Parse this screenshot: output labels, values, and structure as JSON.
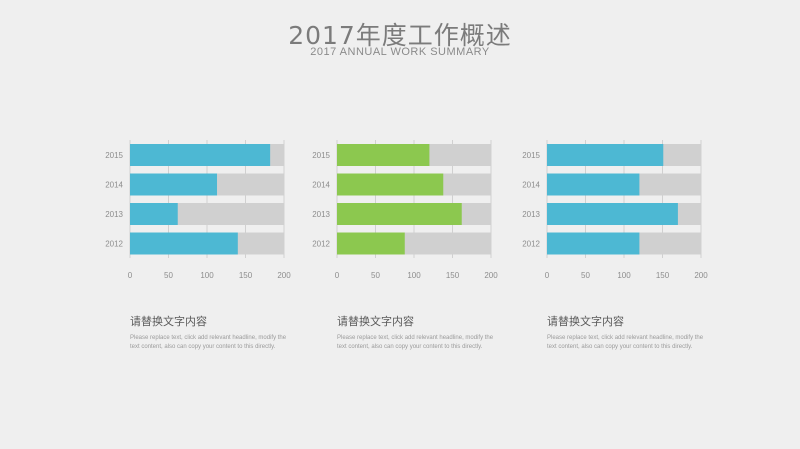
{
  "header": {
    "title": "2017年度工作概述",
    "subtitle": "2017 ANNUAL WORK SUMMARY"
  },
  "colors": {
    "blue": "#4db8d3",
    "green": "#8cc84f",
    "track": "#d0d0d0",
    "axis": "#c8c8c8"
  },
  "chart_data": [
    {
      "type": "bar",
      "orientation": "horizontal",
      "stacked_on_track": true,
      "categories": [
        "2015",
        "2014",
        "2013",
        "2012"
      ],
      "values": [
        182,
        113,
        62,
        140
      ],
      "xlim": [
        0,
        200
      ],
      "xticks": [
        "0",
        "50",
        "100",
        "150",
        "200"
      ],
      "color": "#4db8d3",
      "title": "",
      "xlabel": "",
      "ylabel": ""
    },
    {
      "type": "bar",
      "orientation": "horizontal",
      "stacked_on_track": true,
      "categories": [
        "2015",
        "2014",
        "2013",
        "2012"
      ],
      "values": [
        120,
        138,
        162,
        88
      ],
      "xlim": [
        0,
        200
      ],
      "xticks": [
        "0",
        "50",
        "100",
        "150",
        "200"
      ],
      "color": "#8cc84f",
      "title": "",
      "xlabel": "",
      "ylabel": ""
    },
    {
      "type": "bar",
      "orientation": "horizontal",
      "stacked_on_track": true,
      "categories": [
        "2015",
        "2014",
        "2013",
        "2012"
      ],
      "values": [
        151,
        120,
        170,
        120
      ],
      "xlim": [
        0,
        200
      ],
      "xticks": [
        "0",
        "50",
        "100",
        "150",
        "200"
      ],
      "color": "#4db8d3",
      "title": "",
      "xlabel": "",
      "ylabel": ""
    }
  ],
  "captions": [
    {
      "title": "请替换文字内容",
      "body": "Please replace text, click add relevant headline, modify the text content, also can copy your content to this directly."
    },
    {
      "title": "请替换文字内容",
      "body": "Please replace text, click add relevant headline, modify the text content, also can copy your content to this directly."
    },
    {
      "title": "请替换文字内容",
      "body": "Please replace text, click add relevant headline, modify the text content, also can copy your content to this directly."
    }
  ]
}
